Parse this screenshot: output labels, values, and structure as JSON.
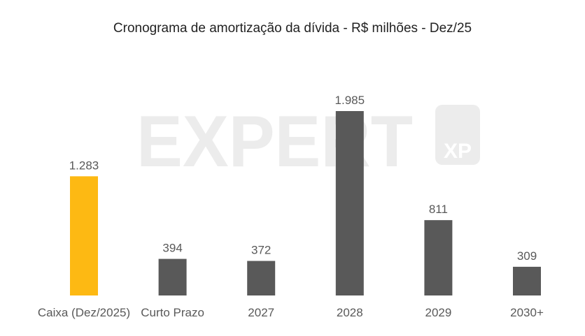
{
  "chart_data": {
    "type": "bar",
    "title": "Cronograma de amortização da dívida - R$ milhões - Dez/25",
    "categories": [
      "Caixa (Dez/2025)",
      "Curto Prazo",
      "2027",
      "2028",
      "2029",
      "2030+"
    ],
    "values": [
      1283,
      394,
      372,
      1985,
      811,
      309
    ],
    "value_labels": [
      "1.283",
      "394",
      "372",
      "1.985",
      "811",
      "309"
    ],
    "colors": [
      "#FDB913",
      "#595959",
      "#595959",
      "#595959",
      "#595959",
      "#595959"
    ],
    "ylim": [
      0,
      1985
    ],
    "grid": false,
    "legend": "none"
  },
  "watermark": {
    "text": "EXPERT",
    "badge": "XP"
  }
}
